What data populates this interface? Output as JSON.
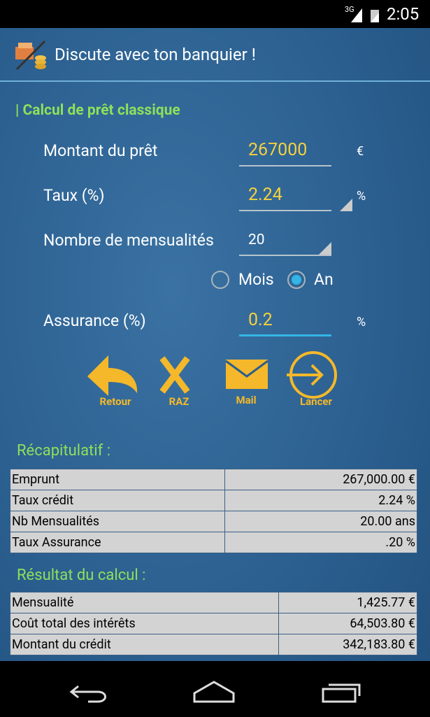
{
  "status_bar": {
    "network": "3G",
    "time": "2:05"
  },
  "header": {
    "title": "Discute avec ton banquier !"
  },
  "section_title": "| Calcul de prêt classique",
  "form": {
    "amount": {
      "label": "Montant du prêt",
      "value": "267000",
      "unit": "€"
    },
    "rate": {
      "label": "Taux (%)",
      "value": "2.24",
      "unit": "%"
    },
    "payments": {
      "label": "Nombre de mensualités",
      "value": "20"
    },
    "period": {
      "options": [
        "Mois",
        "An"
      ],
      "selected": 1
    },
    "insurance": {
      "label": "Assurance (%)",
      "value": "0.2",
      "unit": "%"
    }
  },
  "buttons": [
    "Retour",
    "RAZ",
    "Mail",
    "Lancer"
  ],
  "summary": {
    "title": "Récapitulatif :",
    "rows": [
      [
        "Emprunt",
        "267,000.00 €"
      ],
      [
        "Taux crédit",
        "2.24 %"
      ],
      [
        "Nb Mensualités",
        "20.00 ans"
      ],
      [
        "Taux Assurance",
        ".20 %"
      ]
    ]
  },
  "result": {
    "title": "Résultat du calcul :",
    "rows": [
      [
        "Mensualité",
        "1,425.77 €"
      ],
      [
        "Coût total des intérêts",
        "64,503.80 €"
      ],
      [
        "Montant du crédit",
        "342,183.80 €"
      ]
    ]
  }
}
